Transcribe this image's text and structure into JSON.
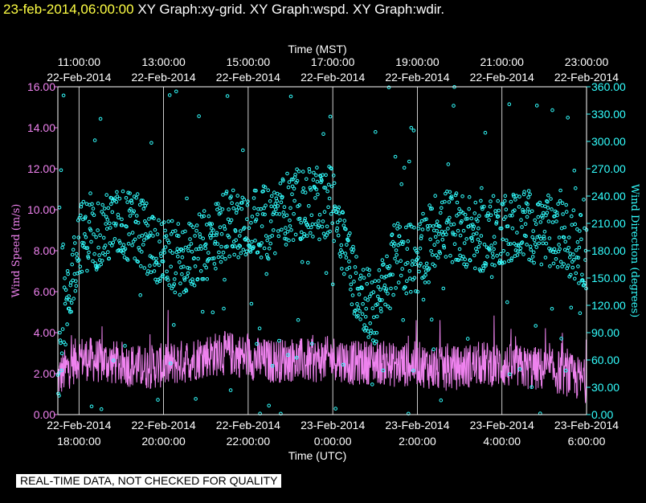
{
  "header": {
    "timestamp": "23-feb-2014,06:00:00",
    "graphs": "XY Graph:xy-grid.  XY Graph:wspd.  XY Graph:wdir."
  },
  "footer": {
    "note": "REAL-TIME DATA, NOT CHECKED FOR QUALITY"
  },
  "chart_data": {
    "type": "scatter",
    "top_axis": {
      "label": "Time (MST)",
      "ticks": [
        {
          "time": "11:00:00",
          "date": "22-Feb-2014"
        },
        {
          "time": "13:00:00",
          "date": "22-Feb-2014"
        },
        {
          "time": "15:00:00",
          "date": "22-Feb-2014"
        },
        {
          "time": "17:00:00",
          "date": "22-Feb-2014"
        },
        {
          "time": "19:00:00",
          "date": "22-Feb-2014"
        },
        {
          "time": "21:00:00",
          "date": "22-Feb-2014"
        },
        {
          "time": "23:00:00",
          "date": "22-Feb-2014"
        }
      ]
    },
    "bottom_axis": {
      "label": "Time (UTC)",
      "ticks": [
        {
          "date": "22-Feb-2014",
          "time": "18:00:00"
        },
        {
          "date": "22-Feb-2014",
          "time": "20:00:00"
        },
        {
          "date": "22-Feb-2014",
          "time": "22:00:00"
        },
        {
          "date": "23-Feb-2014",
          "time": "0:00:00"
        },
        {
          "date": "23-Feb-2014",
          "time": "2:00:00"
        },
        {
          "date": "23-Feb-2014",
          "time": "4:00:00"
        },
        {
          "date": "23-Feb-2014",
          "time": "6:00:00"
        }
      ],
      "range_hours_utc": [
        17.5,
        30.0
      ]
    },
    "left_axis": {
      "label": "Wind Speed (m/s)",
      "range": [
        0,
        16
      ],
      "ticks": [
        "0.00",
        "2.00",
        "4.00",
        "6.00",
        "8.00",
        "10.00",
        "12.00",
        "14.00",
        "16.00"
      ],
      "color": "#ee82ee"
    },
    "right_axis": {
      "label": "Wind Direction (degrees)",
      "range": [
        0,
        360
      ],
      "ticks": [
        "0.00",
        "30.00",
        "60.00",
        "90.00",
        "120.00",
        "150.00",
        "180.00",
        "210.00",
        "240.00",
        "270.00",
        "300.00",
        "330.00",
        "360.00"
      ],
      "color": "#33ffff"
    },
    "grid": true,
    "series": [
      {
        "key": "wspd",
        "style": "line",
        "color": "#ee82ee",
        "axis": "left",
        "x": [
          17.5,
          18.0,
          18.5,
          19.0,
          19.5,
          20.0,
          20.5,
          21.0,
          21.5,
          22.0,
          22.5,
          23.0,
          23.5,
          24.0,
          24.5,
          25.0,
          25.5,
          26.0,
          26.5,
          27.0,
          27.5,
          28.0,
          28.5,
          29.0,
          29.5,
          30.0
        ],
        "y": [
          1.8,
          2.8,
          2.6,
          2.5,
          2.3,
          2.4,
          2.6,
          2.9,
          3.0,
          2.8,
          2.6,
          2.7,
          2.6,
          2.8,
          2.5,
          2.6,
          2.4,
          2.5,
          2.2,
          2.3,
          2.5,
          2.4,
          2.3,
          2.2,
          2.0,
          1.6
        ]
      },
      {
        "key": "wdir",
        "style": "points",
        "color": "#33ffff",
        "axis": "right",
        "x": [
          17.5,
          18.0,
          18.5,
          19.0,
          19.5,
          20.0,
          20.5,
          21.0,
          21.5,
          22.0,
          22.5,
          23.0,
          23.5,
          24.0,
          24.5,
          25.0,
          25.5,
          26.0,
          26.5,
          27.0,
          27.5,
          28.0,
          28.5,
          29.0,
          29.5,
          30.0
        ],
        "y": [
          60,
          195,
          200,
          210,
          200,
          175,
          170,
          185,
          210,
          215,
          210,
          230,
          230,
          235,
          150,
          110,
          175,
          170,
          210,
          205,
          195,
          205,
          210,
          200,
          195,
          175
        ]
      }
    ]
  }
}
